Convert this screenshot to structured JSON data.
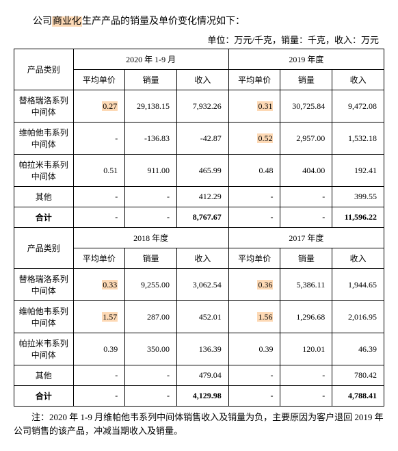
{
  "title_prefix": "公司",
  "title_hl": "商业化",
  "title_suffix": "生产产品的销量及单价变化情况如下：",
  "unit_line": "单位：万元/千克，销量：千克，收入：万元",
  "headers": {
    "product": "产品类别",
    "avg_price": "平均单价",
    "volume": "销量",
    "revenue": "收入",
    "period_2020": "2020 年 1-9 月",
    "period_2019": "2019 年度",
    "period_2018": "2018 年度",
    "period_2017": "2017 年度"
  },
  "row_labels": {
    "tigrelol": "替格瑞洛系列中间体",
    "velpatasvir": "维帕他韦系列中间体",
    "palamivir": "帕拉米韦系列中间体",
    "other": "其他",
    "total": "合计"
  },
  "p2020": {
    "tigrelol": {
      "price": "0.27",
      "price_hl": true,
      "vol": "29,138.15",
      "rev": "7,932.26"
    },
    "velpatasvir": {
      "price": "-",
      "price_hl": false,
      "vol": "-136.83",
      "rev": "-42.87"
    },
    "palamivir": {
      "price": "0.51",
      "price_hl": false,
      "vol": "911.00",
      "rev": "465.99"
    },
    "other": {
      "price": "-",
      "price_hl": false,
      "vol": "-",
      "rev": "412.29"
    },
    "total": {
      "price": "-",
      "vol": "-",
      "rev": "8,767.67"
    }
  },
  "p2019": {
    "tigrelol": {
      "price": "0.31",
      "price_hl": true,
      "vol": "30,725.84",
      "rev": "9,472.08"
    },
    "velpatasvir": {
      "price": "0.52",
      "price_hl": true,
      "vol": "2,957.00",
      "rev": "1,532.18"
    },
    "palamivir": {
      "price": "0.48",
      "price_hl": false,
      "vol": "404.00",
      "rev": "192.41"
    },
    "other": {
      "price": "-",
      "price_hl": false,
      "vol": "-",
      "rev": "399.55"
    },
    "total": {
      "price": "-",
      "vol": "-",
      "rev": "11,596.22"
    }
  },
  "p2018": {
    "tigrelol": {
      "price": "0.33",
      "price_hl": true,
      "vol": "9,255.00",
      "rev": "3,062.54"
    },
    "velpatasvir": {
      "price": "1.57",
      "price_hl": true,
      "vol": "287.00",
      "rev": "452.01"
    },
    "palamivir": {
      "price": "0.39",
      "price_hl": false,
      "vol": "350.00",
      "rev": "136.39"
    },
    "other": {
      "price": "-",
      "price_hl": false,
      "vol": "-",
      "rev": "479.04"
    },
    "total": {
      "price": "-",
      "vol": "-",
      "rev": "4,129.98"
    }
  },
  "p2017": {
    "tigrelol": {
      "price": "0.36",
      "price_hl": true,
      "vol": "5,386.11",
      "rev": "1,944.65"
    },
    "velpatasvir": {
      "price": "1.56",
      "price_hl": true,
      "vol": "1,296.68",
      "rev": "2,016.95"
    },
    "palamivir": {
      "price": "0.39",
      "price_hl": false,
      "vol": "120.01",
      "rev": "46.39"
    },
    "other": {
      "price": "-",
      "price_hl": false,
      "vol": "-",
      "rev": "780.42"
    },
    "total": {
      "price": "-",
      "vol": "-",
      "rev": "4,788.41"
    }
  },
  "note": "注：2020 年 1-9 月维帕他韦系列中间体销售收入及销量为负，主要原因为客户退回 2019 年公司销售的该产品，冲减当期收入及销量。"
}
